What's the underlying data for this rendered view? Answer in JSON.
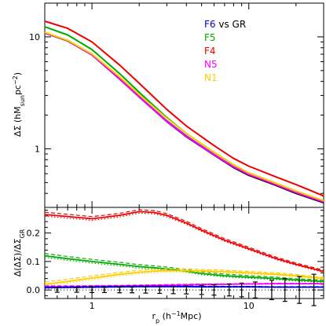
{
  "chart_data": [
    {
      "type": "line",
      "panel": "top",
      "xlabel": "r_p (h^-1 Mpc)",
      "ylabel": "ΔΣ (hM_sun pc^-2)",
      "xscale": "log",
      "yscale": "log",
      "xlim": [
        0.5,
        30
      ],
      "ylim": [
        0.3,
        20
      ],
      "x_ticks": [
        {
          "value": 1,
          "label": "1"
        },
        {
          "value": 10,
          "label": "10"
        }
      ],
      "y_ticks": [
        {
          "value": 1,
          "label": "1"
        },
        {
          "value": 10,
          "label": "10"
        }
      ],
      "legend": {
        "position": "top-right",
        "entries": [
          {
            "label": "F6 vs GR",
            "color": "#0000cc"
          },
          {
            "label": "F5",
            "color": "#00aa00"
          },
          {
            "label": "F4",
            "color": "#ee0000"
          },
          {
            "label": "N5",
            "color": "#ff00ff"
          },
          {
            "label": "N1",
            "color": "#ffcc00"
          }
        ]
      },
      "x": [
        0.5,
        0.7,
        1,
        1.5,
        2,
        3,
        4,
        6,
        8,
        10,
        15,
        20,
        30
      ],
      "series": [
        {
          "name": "GR",
          "color": "#000000",
          "values": [
            10.8,
            9.2,
            6.9,
            4.2,
            2.9,
            1.75,
            1.28,
            0.88,
            0.68,
            0.58,
            0.47,
            0.4,
            0.33
          ]
        },
        {
          "name": "F6",
          "color": "#0000cc",
          "values": [
            10.9,
            9.3,
            6.95,
            4.25,
            2.92,
            1.77,
            1.3,
            0.89,
            0.69,
            0.59,
            0.48,
            0.41,
            0.335
          ]
        },
        {
          "name": "F5",
          "color": "#00aa00",
          "values": [
            12.3,
            10.4,
            7.7,
            4.7,
            3.2,
            1.9,
            1.37,
            0.93,
            0.72,
            0.61,
            0.49,
            0.42,
            0.34
          ]
        },
        {
          "name": "F4",
          "color": "#ee0000",
          "values": [
            13.8,
            11.9,
            9.0,
            5.6,
            3.85,
            2.25,
            1.6,
            1.07,
            0.82,
            0.7,
            0.56,
            0.48,
            0.38
          ]
        },
        {
          "name": "N5",
          "color": "#ff00ff",
          "values": [
            10.85,
            9.25,
            6.92,
            4.22,
            2.91,
            1.76,
            1.29,
            0.885,
            0.69,
            0.59,
            0.478,
            0.407,
            0.336
          ]
        },
        {
          "name": "N1",
          "color": "#ffcc00",
          "values": [
            11.0,
            9.3,
            7.05,
            4.4,
            3.05,
            1.87,
            1.37,
            0.93,
            0.72,
            0.61,
            0.49,
            0.42,
            0.345
          ]
        }
      ]
    },
    {
      "type": "line",
      "panel": "bottom",
      "xlabel": "r_p (h^-1 Mpc)",
      "ylabel": "Δ(ΔΣ)/ΔΣ_GR",
      "xscale": "log",
      "xlim": [
        0.5,
        30
      ],
      "ylim": [
        -0.03,
        0.29
      ],
      "x_ticks": [
        {
          "value": 1,
          "label": "1"
        },
        {
          "value": 10,
          "label": "10"
        }
      ],
      "y_ticks": [
        {
          "value": 0.0,
          "label": "0.0"
        },
        {
          "value": 0.1,
          "label": "0.1"
        },
        {
          "value": 0.2,
          "label": "0.2"
        }
      ],
      "reference_line": {
        "y": 0,
        "style": "dotted"
      },
      "x": [
        0.5,
        0.7,
        1,
        1.5,
        2,
        2.5,
        3,
        4,
        5,
        7,
        10,
        15,
        20,
        30
      ],
      "series": [
        {
          "name": "F4",
          "color": "#ee0000",
          "values": [
            0.265,
            0.258,
            0.25,
            0.262,
            0.275,
            0.272,
            0.262,
            0.235,
            0.21,
            0.175,
            0.145,
            0.11,
            0.09,
            0.065
          ]
        },
        {
          "name": "F5",
          "color": "#00aa00",
          "values": [
            0.12,
            0.11,
            0.1,
            0.09,
            0.082,
            0.078,
            0.074,
            0.066,
            0.058,
            0.05,
            0.045,
            0.04,
            0.035,
            0.03
          ]
        },
        {
          "name": "N1",
          "color": "#ffcc00",
          "values": [
            0.02,
            0.03,
            0.042,
            0.055,
            0.062,
            0.066,
            0.068,
            0.068,
            0.067,
            0.064,
            0.06,
            0.055,
            0.05,
            0.04
          ]
        },
        {
          "name": "N5",
          "color": "#ff00ff",
          "values": [
            0.012,
            0.012,
            0.013,
            0.014,
            0.015,
            0.016,
            0.017,
            0.018,
            0.019,
            0.02,
            0.021,
            0.022,
            0.022,
            0.022
          ]
        },
        {
          "name": "F6",
          "color": "#0000cc",
          "values": [
            0.008,
            0.009,
            0.01,
            0.011,
            0.012,
            0.012,
            0.012,
            0.012,
            0.011,
            0.011,
            0.011,
            0.01,
            0.01,
            0.01
          ]
        }
      ],
      "error_bars": {
        "color": "#000000",
        "x": [
          0.6,
          0.8,
          1.0,
          1.2,
          1.5,
          1.8,
          2.2,
          2.7,
          3.3,
          4.0,
          5.0,
          6.0,
          7.5,
          9.0,
          11,
          14,
          17,
          21,
          26
        ],
        "y": [
          0.0,
          0.0,
          0.0,
          0.0,
          0.0,
          0.0,
          0.0,
          0.0,
          0.0,
          0.0,
          0.0,
          0.0,
          0.0,
          0.0,
          0.0,
          0.0,
          0.0,
          0.0,
          0.0
        ],
        "err": [
          0.008,
          0.008,
          0.009,
          0.009,
          0.01,
          0.01,
          0.011,
          0.012,
          0.013,
          0.014,
          0.016,
          0.018,
          0.021,
          0.024,
          0.028,
          0.034,
          0.04,
          0.047,
          0.055
        ]
      }
    }
  ]
}
